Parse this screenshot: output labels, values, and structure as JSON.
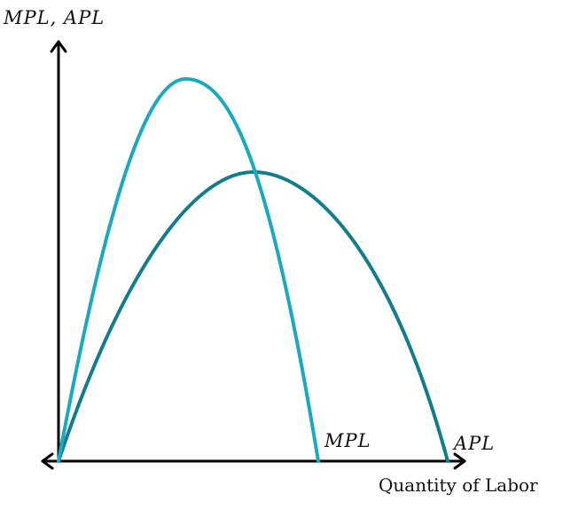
{
  "diagram": {
    "y_axis_label": "MPL, APL",
    "x_axis_label": "Quantity of Labor",
    "curves": [
      {
        "id": "mpl",
        "label": "MPL",
        "color": "#1aa9c1"
      },
      {
        "id": "apl",
        "label": "APL",
        "color": "#137d8e"
      }
    ]
  }
}
